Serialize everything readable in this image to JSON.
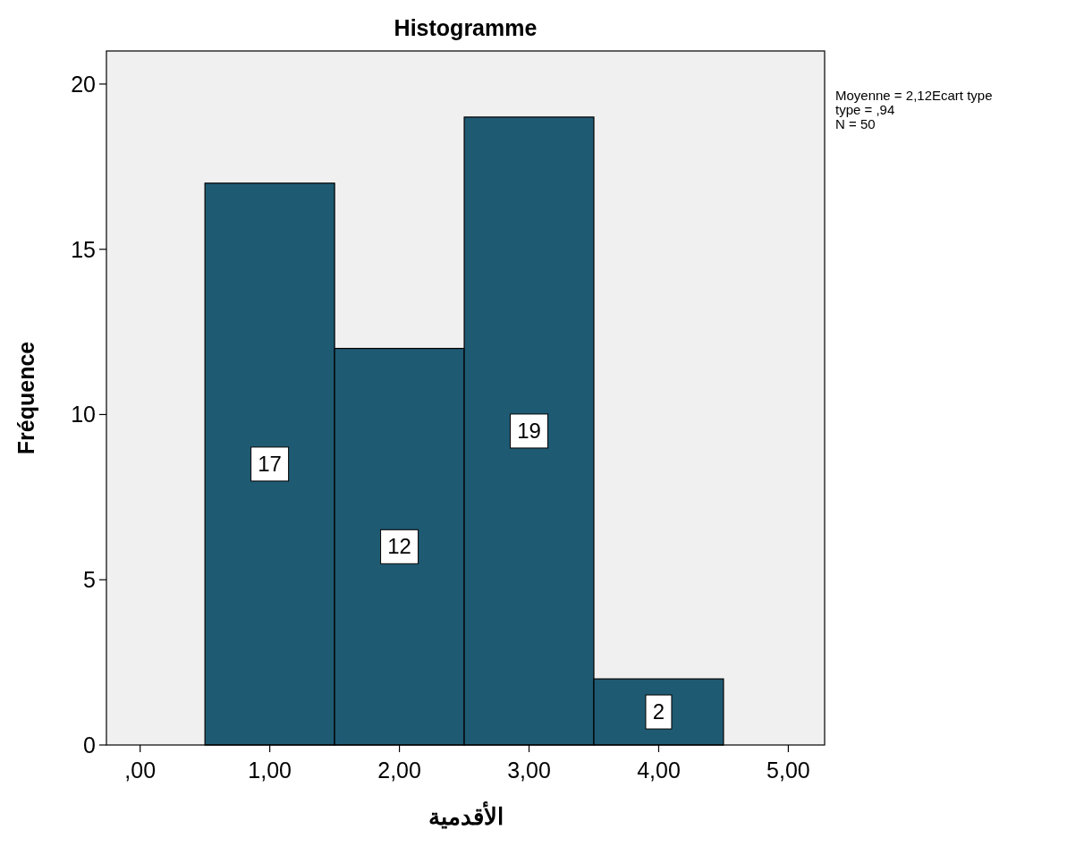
{
  "chart_data": {
    "type": "histogram",
    "title": "Histogramme",
    "xlabel": "الأقدمية",
    "ylabel": "Fréquence",
    "bins": [
      0.5,
      1.5,
      2.5,
      3.5,
      4.5
    ],
    "values": [
      17,
      12,
      19,
      2
    ],
    "color": "#1f5a73",
    "data_labels": true,
    "xlim": [
      -0.26,
      5.28
    ],
    "xticks": [
      {
        "value": 0,
        "label": ",00"
      },
      {
        "value": 1,
        "label": "1,00"
      },
      {
        "value": 2,
        "label": "2,00"
      },
      {
        "value": 3,
        "label": "3,00"
      },
      {
        "value": 4,
        "label": "4,00"
      },
      {
        "value": 5,
        "label": "5,00"
      }
    ],
    "ylim": [
      0,
      21
    ],
    "yticks": [
      0,
      5,
      10,
      15,
      20
    ],
    "grid": false,
    "annotations": [
      "Moyenne = 2,12Ecart type",
      "type = ,94",
      "N = 50"
    ]
  }
}
